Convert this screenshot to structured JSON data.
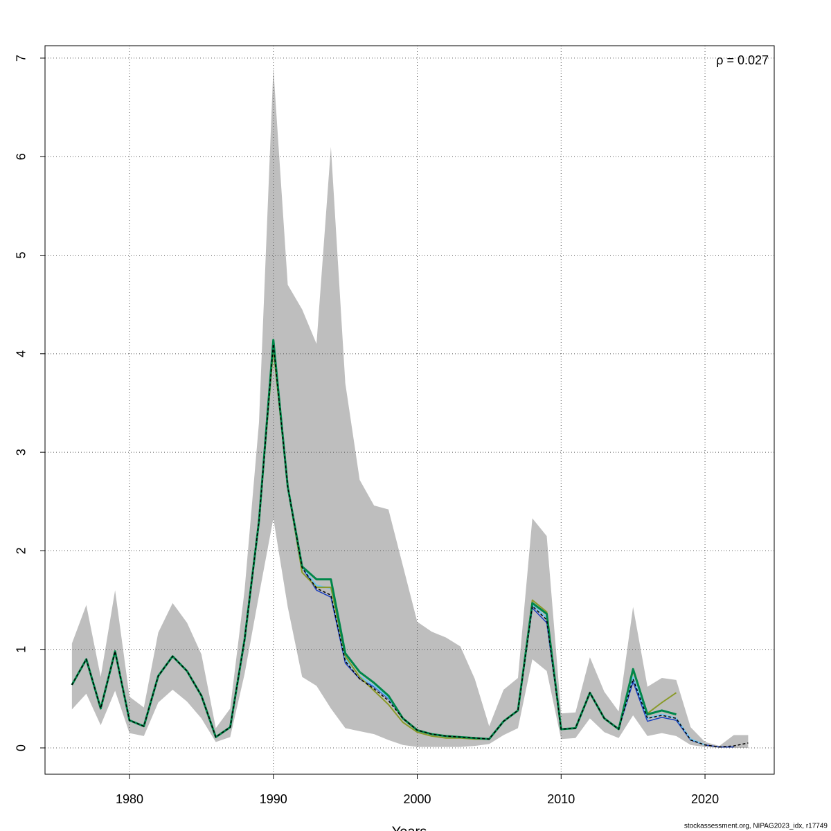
{
  "chart_data": {
    "type": "line",
    "annotation": "ρ = 0.027",
    "x_label": "Years",
    "footer": "stockassessment.org, NIPAG2023_idx, r17749",
    "x": [
      1976,
      1977,
      1978,
      1979,
      1980,
      1981,
      1982,
      1983,
      1984,
      1985,
      1986,
      1987,
      1988,
      1989,
      1990,
      1991,
      1992,
      1993,
      1994,
      1995,
      1996,
      1997,
      1998,
      1999,
      2000,
      2001,
      2002,
      2003,
      2004,
      2005,
      2006,
      2007,
      2008,
      2009,
      2010,
      2011,
      2012,
      2013,
      2014,
      2015,
      2016,
      2017,
      2018,
      2019,
      2020,
      2021,
      2022,
      2023
    ],
    "band_color": "#bebebe",
    "band_upper": [
      1.06,
      1.45,
      0.72,
      1.6,
      0.52,
      0.41,
      1.17,
      1.47,
      1.27,
      0.95,
      0.2,
      0.4,
      1.6,
      3.3,
      6.9,
      4.7,
      4.45,
      4.1,
      6.1,
      3.7,
      2.72,
      2.46,
      2.42,
      1.85,
      1.28,
      1.18,
      1.12,
      1.03,
      0.7,
      0.22,
      0.59,
      0.71,
      2.33,
      2.15,
      0.35,
      0.36,
      0.92,
      0.57,
      0.37,
      1.43,
      0.62,
      0.71,
      0.69,
      0.21,
      0.06,
      0.02,
      0.13,
      0.13
    ],
    "band_lower": [
      0.39,
      0.55,
      0.23,
      0.58,
      0.15,
      0.12,
      0.46,
      0.59,
      0.47,
      0.3,
      0.06,
      0.11,
      0.75,
      1.55,
      2.33,
      1.43,
      0.72,
      0.63,
      0.4,
      0.2,
      0.17,
      0.14,
      0.08,
      0.03,
      0.01,
      0.01,
      0.01,
      0.01,
      0.02,
      0.04,
      0.13,
      0.2,
      0.9,
      0.78,
      0.09,
      0.1,
      0.3,
      0.16,
      0.1,
      0.33,
      0.12,
      0.15,
      0.12,
      0.03,
      0.01,
      0,
      0,
      0
    ],
    "series": [
      {
        "color": "#1a3fbf",
        "width": 1.5,
        "values": [
          0.64,
          0.9,
          0.4,
          0.98,
          0.28,
          0.22,
          0.73,
          0.93,
          0.78,
          0.53,
          0.11,
          0.21,
          1.1,
          2.3,
          4.1,
          2.65,
          1.83,
          1.6,
          1.53,
          0.86,
          0.7,
          0.62,
          0.5,
          0.3,
          0.18,
          0.14,
          0.12,
          0.11,
          0.1,
          0.09,
          0.27,
          0.38,
          1.42,
          1.27,
          0.19,
          0.2,
          0.56,
          0.3,
          0.19,
          0.67,
          0.27,
          0.31,
          0.28,
          0.08,
          0.03,
          0.01,
          0.01,
          null
        ]
      },
      {
        "color": "#6ec6f0",
        "width": 2,
        "values": [
          0.64,
          0.9,
          0.4,
          0.98,
          0.28,
          0.22,
          0.73,
          0.93,
          0.78,
          0.53,
          0.11,
          0.21,
          1.1,
          2.3,
          4.1,
          2.65,
          1.83,
          1.65,
          1.62,
          0.9,
          0.73,
          0.63,
          0.51,
          0.3,
          0.18,
          0.14,
          0.12,
          0.11,
          0.1,
          0.09,
          0.27,
          0.38,
          1.45,
          1.32,
          0.19,
          0.2,
          0.56,
          0.3,
          0.19,
          0.72,
          0.3,
          0.34,
          0.3,
          0.09,
          0.03,
          null,
          null,
          null
        ]
      },
      {
        "color": "#8a9a2a",
        "width": 2,
        "values": [
          0.64,
          0.9,
          0.4,
          0.98,
          0.28,
          0.22,
          0.73,
          0.93,
          0.78,
          0.53,
          0.11,
          0.21,
          1.1,
          2.3,
          4.05,
          2.65,
          1.78,
          1.63,
          1.63,
          0.93,
          0.72,
          0.58,
          0.44,
          0.26,
          0.16,
          0.12,
          0.1,
          0.1,
          0.09,
          0.09,
          0.27,
          0.38,
          1.5,
          1.38,
          0.19,
          0.2,
          0.56,
          0.3,
          0.19,
          0.78,
          0.35,
          0.46,
          0.56,
          null,
          null,
          null,
          null,
          null
        ]
      },
      {
        "color": "#00874a",
        "width": 3,
        "values": [
          0.64,
          0.9,
          0.4,
          0.98,
          0.28,
          0.22,
          0.73,
          0.93,
          0.78,
          0.53,
          0.11,
          0.21,
          1.1,
          2.3,
          4.14,
          2.65,
          1.84,
          1.71,
          1.71,
          0.96,
          0.77,
          0.66,
          0.53,
          0.3,
          0.18,
          0.14,
          0.12,
          0.11,
          0.1,
          0.09,
          0.27,
          0.38,
          1.47,
          1.36,
          0.19,
          0.2,
          0.56,
          0.3,
          0.19,
          0.8,
          0.34,
          0.38,
          0.34,
          null,
          null,
          null,
          null,
          null
        ]
      },
      {
        "color": "#000000",
        "width": 1.5,
        "dash": true,
        "values": [
          0.64,
          0.9,
          0.4,
          0.98,
          0.28,
          0.22,
          0.73,
          0.93,
          0.78,
          0.53,
          0.11,
          0.21,
          1.1,
          2.3,
          4.1,
          2.65,
          1.83,
          1.62,
          1.55,
          0.88,
          0.7,
          0.6,
          0.48,
          0.3,
          0.18,
          0.14,
          0.12,
          0.11,
          0.1,
          0.09,
          0.27,
          0.38,
          1.44,
          1.3,
          0.19,
          0.2,
          0.56,
          0.3,
          0.19,
          0.7,
          0.3,
          0.33,
          0.3,
          0.08,
          0.03,
          0.01,
          0.02,
          0.05
        ]
      }
    ],
    "xlim": [
      1974.13,
      2024.81
    ],
    "xticks": [
      1980,
      1990,
      2000,
      2010,
      2020
    ],
    "ylim": [
      -0.267,
      7.126
    ],
    "yticks": [
      0,
      1,
      2,
      3,
      4,
      5,
      6,
      7
    ],
    "grid": true
  }
}
